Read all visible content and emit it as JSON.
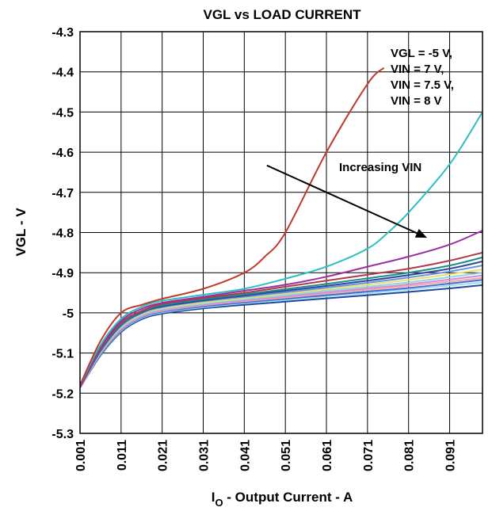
{
  "chart_data": {
    "type": "line",
    "title": "VGL vs LOAD CURRENT",
    "xlabel_main": "I",
    "xlabel_sub": "O",
    "xlabel_rest": " - Output Current - A",
    "ylabel": "VGL - V",
    "xlim": [
      0.001,
      0.099
    ],
    "ylim": [
      -5.3,
      -4.3
    ],
    "y_ticks": [
      -4.3,
      -4.4,
      -4.5,
      -4.6,
      -4.7,
      -4.8,
      -4.9,
      -5,
      -5.1,
      -5.2,
      -5.3
    ],
    "y_tick_labels": [
      "-4.3",
      "-4.4",
      "-4.5",
      "-4.6",
      "-4.7",
      "-4.8",
      "-4.9",
      "-5",
      "-5.1",
      "-5.2",
      "-5.3"
    ],
    "x_ticks": [
      0.001,
      0.011,
      0.021,
      0.031,
      0.041,
      0.051,
      0.061,
      0.071,
      0.081,
      0.091
    ],
    "x_tick_labels": [
      "0.001",
      "0.011",
      "0.021",
      "0.031",
      "0.041",
      "0.051",
      "0.061",
      "0.071",
      "0.081",
      "0.091"
    ],
    "grid": true,
    "legend_lines": [
      "VGL = -5 V,",
      "VIN = 7 V,",
      "VIN = 7.5 V,",
      "VIN = 8 V"
    ],
    "annotation": "Increasing VIN",
    "annotation_arrow": {
      "from": [
        0.0465,
        -4.633
      ],
      "to": [
        0.0855,
        -4.813
      ]
    },
    "series": [
      {
        "color": "#c0392b",
        "x": [
          0.001,
          0.006,
          0.011,
          0.016,
          0.021,
          0.031,
          0.041,
          0.046,
          0.051,
          0.061,
          0.071,
          0.075
        ],
        "y": [
          -5.18,
          -5.07,
          -5.0,
          -4.98,
          -4.965,
          -4.94,
          -4.9,
          -4.86,
          -4.8,
          -4.6,
          -4.43,
          -4.39
        ]
      },
      {
        "color": "#2bbfbf",
        "x": [
          0.001,
          0.006,
          0.011,
          0.016,
          0.021,
          0.031,
          0.041,
          0.051,
          0.061,
          0.071,
          0.076,
          0.081,
          0.091,
          0.099
        ],
        "y": [
          -5.18,
          -5.08,
          -5.015,
          -4.985,
          -4.97,
          -4.955,
          -4.94,
          -4.915,
          -4.885,
          -4.84,
          -4.8,
          -4.75,
          -4.63,
          -4.5
        ]
      },
      {
        "color": "#9b2fa0",
        "x": [
          0.001,
          0.006,
          0.011,
          0.016,
          0.021,
          0.031,
          0.041,
          0.051,
          0.061,
          0.071,
          0.081,
          0.091,
          0.099
        ],
        "y": [
          -5.185,
          -5.085,
          -5.02,
          -4.99,
          -4.975,
          -4.96,
          -4.945,
          -4.93,
          -4.91,
          -4.885,
          -4.86,
          -4.83,
          -4.795
        ]
      },
      {
        "color": "#b03a48",
        "x": [
          0.001,
          0.006,
          0.011,
          0.016,
          0.021,
          0.031,
          0.041,
          0.051,
          0.061,
          0.071,
          0.081,
          0.091,
          0.099
        ],
        "y": [
          -5.185,
          -5.09,
          -5.025,
          -4.995,
          -4.978,
          -4.963,
          -4.95,
          -4.935,
          -4.92,
          -4.905,
          -4.89,
          -4.87,
          -4.85
        ]
      },
      {
        "color": "#1f8a8a",
        "x": [
          0.001,
          0.006,
          0.011,
          0.016,
          0.021,
          0.031,
          0.041,
          0.051,
          0.061,
          0.071,
          0.081,
          0.091,
          0.099
        ],
        "y": [
          -5.185,
          -5.092,
          -5.028,
          -4.997,
          -4.981,
          -4.966,
          -4.954,
          -4.941,
          -4.928,
          -4.914,
          -4.9,
          -4.882,
          -4.862
        ]
      },
      {
        "color": "#2b4a9b",
        "x": [
          0.001,
          0.006,
          0.011,
          0.016,
          0.021,
          0.031,
          0.041,
          0.051,
          0.061,
          0.071,
          0.081,
          0.091,
          0.099
        ],
        "y": [
          -5.185,
          -5.094,
          -5.03,
          -4.999,
          -4.984,
          -4.969,
          -4.957,
          -4.945,
          -4.933,
          -4.92,
          -4.906,
          -4.89,
          -4.872
        ]
      },
      {
        "color": "#6a8ee0",
        "x": [
          0.001,
          0.006,
          0.011,
          0.016,
          0.021,
          0.031,
          0.041,
          0.051,
          0.061,
          0.071,
          0.081,
          0.091,
          0.099
        ],
        "y": [
          -5.185,
          -5.096,
          -5.033,
          -5.001,
          -4.986,
          -4.971,
          -4.96,
          -4.949,
          -4.937,
          -4.925,
          -4.912,
          -4.897,
          -4.882
        ]
      },
      {
        "color": "#e8e070",
        "x": [
          0.001,
          0.006,
          0.011,
          0.016,
          0.021,
          0.031,
          0.041,
          0.051,
          0.061,
          0.071,
          0.081,
          0.091,
          0.099
        ],
        "y": [
          -5.185,
          -5.097,
          -5.035,
          -5.003,
          -4.988,
          -4.974,
          -4.963,
          -4.952,
          -4.941,
          -4.93,
          -4.918,
          -4.904,
          -4.892
        ]
      },
      {
        "color": "#8dd8d8",
        "x": [
          0.001,
          0.006,
          0.011,
          0.016,
          0.021,
          0.031,
          0.041,
          0.051,
          0.061,
          0.071,
          0.081,
          0.091,
          0.099
        ],
        "y": [
          -5.186,
          -5.099,
          -5.037,
          -5.005,
          -4.991,
          -4.977,
          -4.966,
          -4.956,
          -4.945,
          -4.935,
          -4.924,
          -4.911,
          -4.9
        ]
      },
      {
        "color": "#d78ad7",
        "x": [
          0.001,
          0.006,
          0.011,
          0.016,
          0.021,
          0.031,
          0.041,
          0.051,
          0.061,
          0.071,
          0.081,
          0.091,
          0.099
        ],
        "y": [
          -5.186,
          -5.1,
          -5.039,
          -5.007,
          -4.993,
          -4.979,
          -4.969,
          -4.959,
          -4.949,
          -4.939,
          -4.929,
          -4.917,
          -4.907
        ]
      },
      {
        "color": "#f0a8a8",
        "x": [
          0.001,
          0.006,
          0.011,
          0.016,
          0.021,
          0.031,
          0.041,
          0.051,
          0.061,
          0.071,
          0.081,
          0.091,
          0.099
        ],
        "y": [
          -5.186,
          -5.101,
          -5.041,
          -5.009,
          -4.995,
          -4.981,
          -4.971,
          -4.962,
          -4.952,
          -4.943,
          -4.933,
          -4.922,
          -4.913
        ]
      },
      {
        "color": "#3f6fd0",
        "x": [
          0.001,
          0.006,
          0.011,
          0.016,
          0.021,
          0.031,
          0.041,
          0.051,
          0.061,
          0.071,
          0.081,
          0.091,
          0.099
        ],
        "y": [
          -5.186,
          -5.103,
          -5.043,
          -5.011,
          -4.997,
          -4.984,
          -4.974,
          -4.965,
          -4.956,
          -4.947,
          -4.938,
          -4.927,
          -4.918
        ]
      },
      {
        "color": "#a8d8f0",
        "x": [
          0.001,
          0.006,
          0.011,
          0.016,
          0.021,
          0.031,
          0.041,
          0.051,
          0.061,
          0.071,
          0.081,
          0.091,
          0.099
        ],
        "y": [
          -5.187,
          -5.104,
          -5.045,
          -5.013,
          -4.999,
          -4.986,
          -4.976,
          -4.968,
          -4.959,
          -4.951,
          -4.942,
          -4.932,
          -4.924
        ]
      },
      {
        "color": "#1a4a9a",
        "x": [
          0.001,
          0.006,
          0.011,
          0.016,
          0.021,
          0.031,
          0.041,
          0.051,
          0.061,
          0.071,
          0.081,
          0.091,
          0.099
        ],
        "y": [
          -5.187,
          -5.106,
          -5.048,
          -5.016,
          -5.002,
          -4.989,
          -4.98,
          -4.972,
          -4.964,
          -4.956,
          -4.948,
          -4.939,
          -4.931
        ]
      }
    ]
  }
}
